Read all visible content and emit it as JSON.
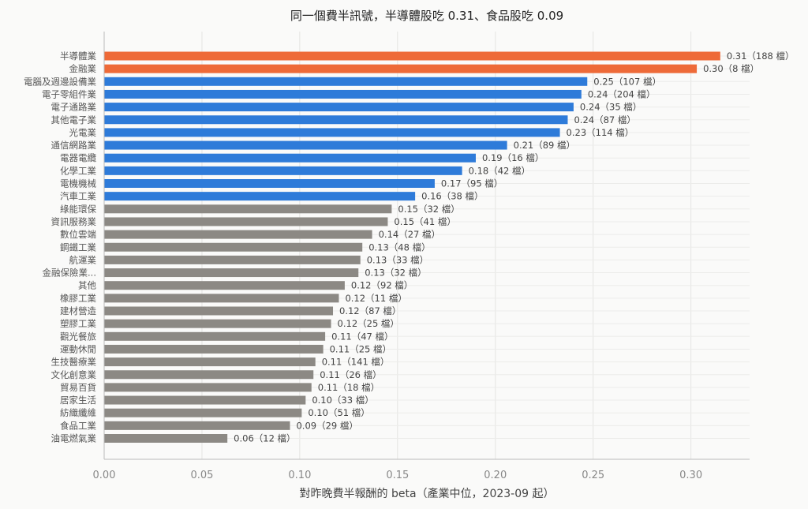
{
  "chart_data": {
    "type": "bar",
    "orientation": "horizontal",
    "title": "同一個費半訊號，半導體股吃 0.31、食品股吃 0.09",
    "xlabel": "對昨晚費半報酬的 beta（產業中位，2023-09 起）",
    "ylabel": "",
    "xlim": [
      0,
      0.33
    ],
    "xticks": [
      "0.00",
      "0.05",
      "0.10",
      "0.15",
      "0.20",
      "0.25",
      "0.30"
    ],
    "grid": true,
    "colors": {
      "highlight": "#ee6a38",
      "electronics": "#2e7bd9",
      "other": "#8c8984"
    },
    "categories": [
      {
        "name": "半導體業",
        "value": 0.315,
        "label": "0.31（188 檔）",
        "group": "highlight"
      },
      {
        "name": "金融業",
        "value": 0.303,
        "label": "0.30（8 檔）",
        "group": "highlight"
      },
      {
        "name": "電腦及週邊設備業",
        "value": 0.247,
        "label": "0.25（107 檔）",
        "group": "electronics"
      },
      {
        "name": "電子零組件業",
        "value": 0.244,
        "label": "0.24（204 檔）",
        "group": "electronics"
      },
      {
        "name": "電子通路業",
        "value": 0.24,
        "label": "0.24（35 檔）",
        "group": "electronics"
      },
      {
        "name": "其他電子業",
        "value": 0.237,
        "label": "0.24（87 檔）",
        "group": "electronics"
      },
      {
        "name": "光電業",
        "value": 0.233,
        "label": "0.23（114 檔）",
        "group": "electronics"
      },
      {
        "name": "通信網路業",
        "value": 0.206,
        "label": "0.21（89 檔）",
        "group": "electronics"
      },
      {
        "name": "電器電纜",
        "value": 0.19,
        "label": "0.19（16 檔）",
        "group": "electronics"
      },
      {
        "name": "化學工業",
        "value": 0.183,
        "label": "0.18（42 檔）",
        "group": "electronics"
      },
      {
        "name": "電機機械",
        "value": 0.169,
        "label": "0.17（95 檔）",
        "group": "electronics"
      },
      {
        "name": "汽車工業",
        "value": 0.159,
        "label": "0.16（38 檔）",
        "group": "electronics"
      },
      {
        "name": "綠能環保",
        "value": 0.147,
        "label": "0.15（32 檔）",
        "group": "other"
      },
      {
        "name": "資訊服務業",
        "value": 0.145,
        "label": "0.15（41 檔）",
        "group": "other"
      },
      {
        "name": "數位雲端",
        "value": 0.137,
        "label": "0.14（27 檔）",
        "group": "other"
      },
      {
        "name": "鋼鐵工業",
        "value": 0.132,
        "label": "0.13（48 檔）",
        "group": "other"
      },
      {
        "name": "航運業",
        "value": 0.131,
        "label": "0.13（33 檔）",
        "group": "other"
      },
      {
        "name": "金融保險業...",
        "value": 0.13,
        "label": "0.13（32 檔）",
        "group": "other"
      },
      {
        "name": "其他",
        "value": 0.123,
        "label": "0.12（92 檔）",
        "group": "other"
      },
      {
        "name": "橡膠工業",
        "value": 0.12,
        "label": "0.12（11 檔）",
        "group": "other"
      },
      {
        "name": "建材營造",
        "value": 0.117,
        "label": "0.12（87 檔）",
        "group": "other"
      },
      {
        "name": "塑膠工業",
        "value": 0.116,
        "label": "0.12（25 檔）",
        "group": "other"
      },
      {
        "name": "觀光餐旅",
        "value": 0.113,
        "label": "0.11（47 檔）",
        "group": "other"
      },
      {
        "name": "運動休閒",
        "value": 0.112,
        "label": "0.11（25 檔）",
        "group": "other"
      },
      {
        "name": "生技醫療業",
        "value": 0.108,
        "label": "0.11（141 檔）",
        "group": "other"
      },
      {
        "name": "文化創意業",
        "value": 0.107,
        "label": "0.11（26 檔）",
        "group": "other"
      },
      {
        "name": "貿易百貨",
        "value": 0.106,
        "label": "0.11（18 檔）",
        "group": "other"
      },
      {
        "name": "居家生活",
        "value": 0.103,
        "label": "0.10（33 檔）",
        "group": "other"
      },
      {
        "name": "紡織纖維",
        "value": 0.101,
        "label": "0.10（51 檔）",
        "group": "other"
      },
      {
        "name": "食品工業",
        "value": 0.095,
        "label": "0.09（29 檔）",
        "group": "other"
      },
      {
        "name": "油電燃氣業",
        "value": 0.063,
        "label": "0.06（12 檔）",
        "group": "other"
      }
    ]
  }
}
